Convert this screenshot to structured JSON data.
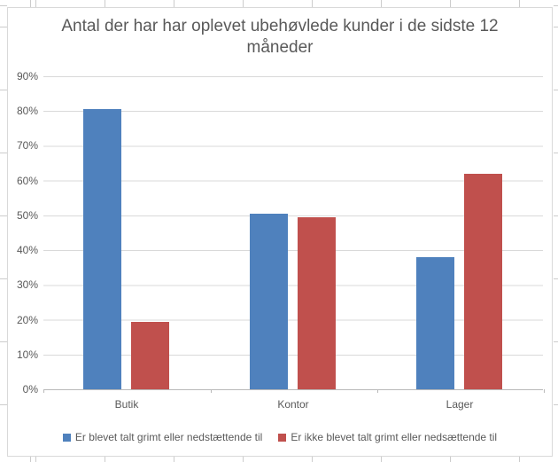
{
  "chart_data": {
    "type": "bar",
    "title": "Antal der har har oplevet ubehøvlede kunder i de sidste 12 måneder",
    "categories": [
      "Butik",
      "Kontor",
      "Lager"
    ],
    "series": [
      {
        "name": "Er blevet talt grimt eller nedstættende til",
        "color": "#4F81BD",
        "values": [
          80.5,
          50.5,
          38
        ]
      },
      {
        "name": "Er ikke blevet talt grimt eller nedsættende til",
        "color": "#C0504D",
        "values": [
          19.5,
          49.5,
          62
        ]
      }
    ],
    "xlabel": "",
    "ylabel": "",
    "ylim": [
      0,
      90
    ],
    "ytick_step": 10,
    "yticks": [
      "0%",
      "10%",
      "20%",
      "30%",
      "40%",
      "50%",
      "60%",
      "70%",
      "80%",
      "90%"
    ],
    "grid": true,
    "legend_position": "bottom"
  },
  "colors": {
    "gridline": "#D9D9D9",
    "axis_line": "#B9B9B9",
    "text": "#595959",
    "chart_border": "#D9D9D9"
  }
}
